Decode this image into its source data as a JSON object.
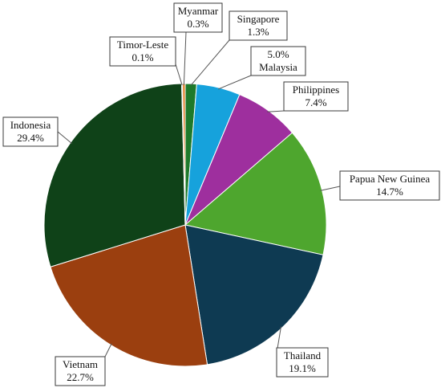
{
  "chart_data": {
    "type": "pie",
    "title": "",
    "start_angle_deg": 0,
    "direction": "clockwise",
    "slices": [
      {
        "label": "Singapore",
        "percent_label": "1.3%",
        "value": 1.3,
        "color": "#1e7a2b"
      },
      {
        "label": "Malaysia",
        "percent_label": "5.0%",
        "value": 5.0,
        "color": "#16a2dc"
      },
      {
        "label": "Philippines",
        "percent_label": "7.4%",
        "value": 7.4,
        "color": "#9e2f9e"
      },
      {
        "label": "Papua New Guinea",
        "percent_label": "14.7%",
        "value": 14.7,
        "color": "#4ea62e"
      },
      {
        "label": "Thailand",
        "percent_label": "19.1%",
        "value": 19.1,
        "color": "#0e3a52"
      },
      {
        "label": "Vietnam",
        "percent_label": "22.7%",
        "value": 22.7,
        "color": "#9b3f0f"
      },
      {
        "label": "Indonesia",
        "percent_label": "29.4%",
        "value": 29.4,
        "color": "#0f4218"
      },
      {
        "label": "Timor-Leste",
        "percent_label": "0.1%",
        "value": 0.1,
        "color": "#2e5c8a"
      },
      {
        "label": "Myanmar",
        "percent_label": "0.3%",
        "value": 0.3,
        "color": "#e07b22"
      }
    ]
  }
}
